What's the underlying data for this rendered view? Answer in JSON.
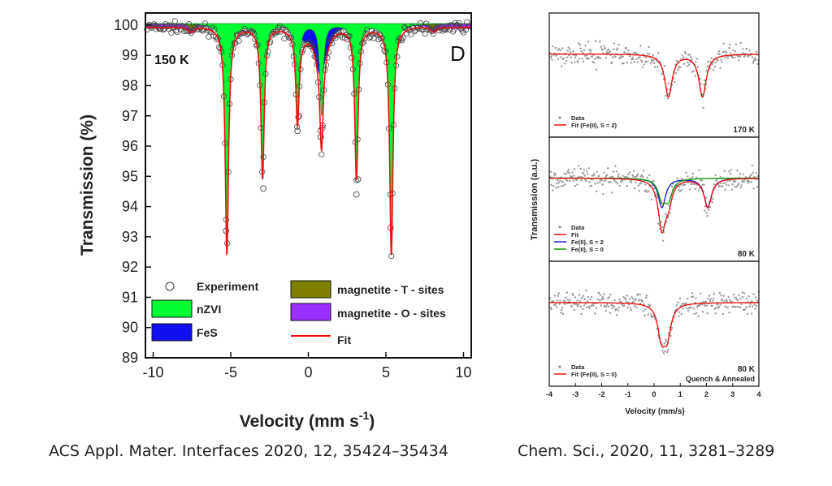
{
  "colors": {
    "nzvi": "#00ff33",
    "fes": "#1010ee",
    "magT": "#808000",
    "magO": "#9b30ff",
    "fit": "#ee1111",
    "s0": "#119911",
    "s2": "#1a22cc"
  },
  "chart_data": [
    {
      "type": "line",
      "panel_letter": "D",
      "temperature_label": "150 K",
      "xlabel": "Velocity (mm s",
      "xlabel_sup": "-1",
      "xlabel_close": ")",
      "ylabel": "Transmission (%)",
      "xlim": [
        -10.5,
        10.5
      ],
      "ylim": [
        89,
        100.4
      ],
      "xticks": [
        -10,
        -5,
        0,
        5,
        10
      ],
      "yticks": [
        89,
        90,
        91,
        92,
        93,
        94,
        95,
        96,
        97,
        98,
        99,
        100
      ],
      "legend": {
        "experiment": "Experiment",
        "nzvi": "nZVI",
        "fes": "FeS",
        "magT": "magnetite - T - sites",
        "magO": "magnetite - O - sites",
        "fit": "Fit"
      },
      "sextet_lines": [
        {
          "x": -5.25,
          "depth": 7.5
        },
        {
          "x": -2.95,
          "depth": 5.0
        },
        {
          "x": -0.7,
          "depth": 3.0
        },
        {
          "x": 0.85,
          "depth": 3.0
        },
        {
          "x": 3.1,
          "depth": 5.0
        },
        {
          "x": 5.35,
          "depth": 7.5
        }
      ],
      "fes_peak": {
        "x": 0.8,
        "depth": 1.7
      },
      "outlier_points": [
        [
          -5.3,
          93.2
        ],
        [
          -2.9,
          94.6
        ],
        [
          -0.7,
          96.5
        ],
        [
          -0.6,
          97.0
        ],
        [
          0.8,
          96.3
        ],
        [
          0.9,
          96.6
        ],
        [
          3.1,
          94.4
        ],
        [
          3.2,
          94.9
        ],
        [
          5.3,
          93.3
        ]
      ]
    },
    {
      "type": "scatter",
      "xlabel": "Velocity (mm/s)",
      "ylabel": "Transmission (a.u.)",
      "xlim": [
        -4,
        4
      ],
      "xticks": [
        -4,
        -3,
        -2,
        -1,
        0,
        1,
        2,
        3,
        4
      ],
      "panels": [
        {
          "temperature": "170 K",
          "note": "",
          "legend": [
            "Data",
            "Fit (Fe(II), S = 2)"
          ],
          "doublets": [
            {
              "series": "Fit (Fe(II), S = 2)",
              "lines": [
                0.55,
                1.85
              ],
              "depth": 0.55
            }
          ]
        },
        {
          "temperature": "80 K",
          "note": "",
          "legend": [
            "Data",
            "Fit",
            "Fe(II), S = 2",
            "Fe(II), S = 0"
          ],
          "doublets": [
            {
              "series": "Fe(II), S = 2",
              "lines": [
                0.3,
                2.05
              ],
              "depth": 0.38
            },
            {
              "series": "Fe(II), S = 0",
              "lines": [
                0.3,
                0.55
              ],
              "depth": 0.25
            }
          ]
        },
        {
          "temperature": "80 K",
          "note": "Quench & Annealed",
          "legend": [
            "Data",
            "Fit (Fe(II), S = 0)"
          ],
          "doublets": [
            {
              "series": "Fit (Fe(II), S = 0)",
              "lines": [
                0.28,
                0.5
              ],
              "depth": 0.4
            }
          ]
        }
      ]
    }
  ],
  "captions": {
    "left": "ACS Appl. Mater. Interfaces 2020, 12, 35424–35434",
    "right": "Chem. Sci., 2020, 11, 3281–3289"
  }
}
